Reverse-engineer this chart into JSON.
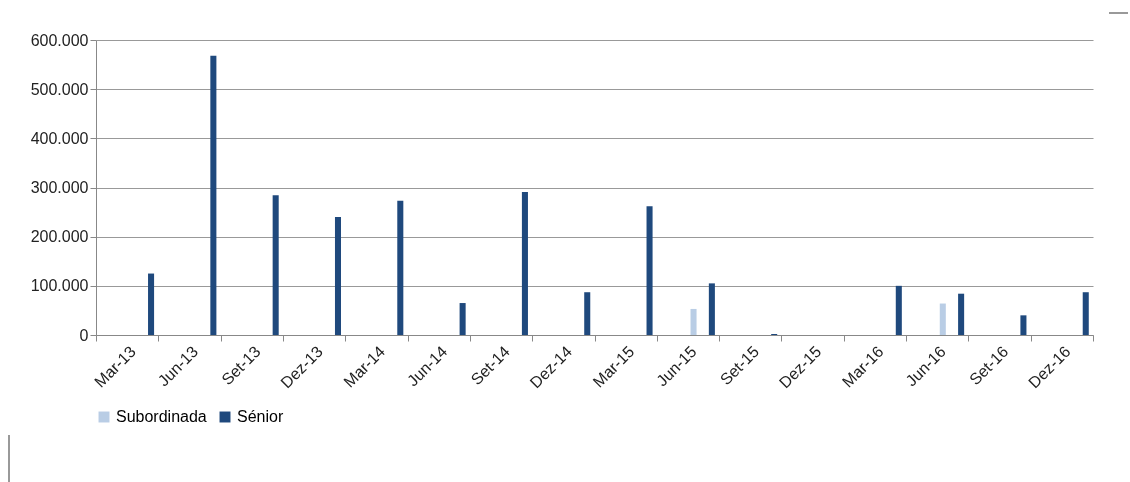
{
  "chart_data": {
    "type": "bar",
    "categories": [
      "Mar-13",
      "Jun-13",
      "Set-13",
      "Dez-13",
      "Mar-14",
      "Jun-14",
      "Set-14",
      "Dez-14",
      "Mar-15",
      "Jun-15",
      "Set-15",
      "Dez-15",
      "Mar-16",
      "Jun-16",
      "Set-16",
      "Dez-16"
    ],
    "series": [
      {
        "name": "Subordinada",
        "color": "#b9cde5",
        "values": [
          null,
          null,
          null,
          null,
          null,
          null,
          null,
          null,
          null,
          53000,
          null,
          null,
          null,
          64000,
          null,
          null
        ]
      },
      {
        "name": "Sénior",
        "color": "#1f497d",
        "values": [
          125000,
          568000,
          284000,
          240000,
          273000,
          65000,
          291000,
          87000,
          262000,
          105000,
          2000,
          null,
          100000,
          84000,
          40000,
          87000
        ]
      }
    ],
    "ylim": [
      0,
      600000
    ],
    "yticks": [
      0,
      {
        "value": 100000,
        "label": "100.000"
      },
      {
        "value": 200000,
        "label": "200.000"
      },
      {
        "value": 300000,
        "label": "300.000"
      },
      {
        "value": 400000,
        "label": "400.000"
      },
      {
        "value": 500000,
        "label": "500.000"
      },
      {
        "value": 600000,
        "label": "600.000"
      }
    ],
    "grid": "y",
    "legend": "bottom"
  }
}
